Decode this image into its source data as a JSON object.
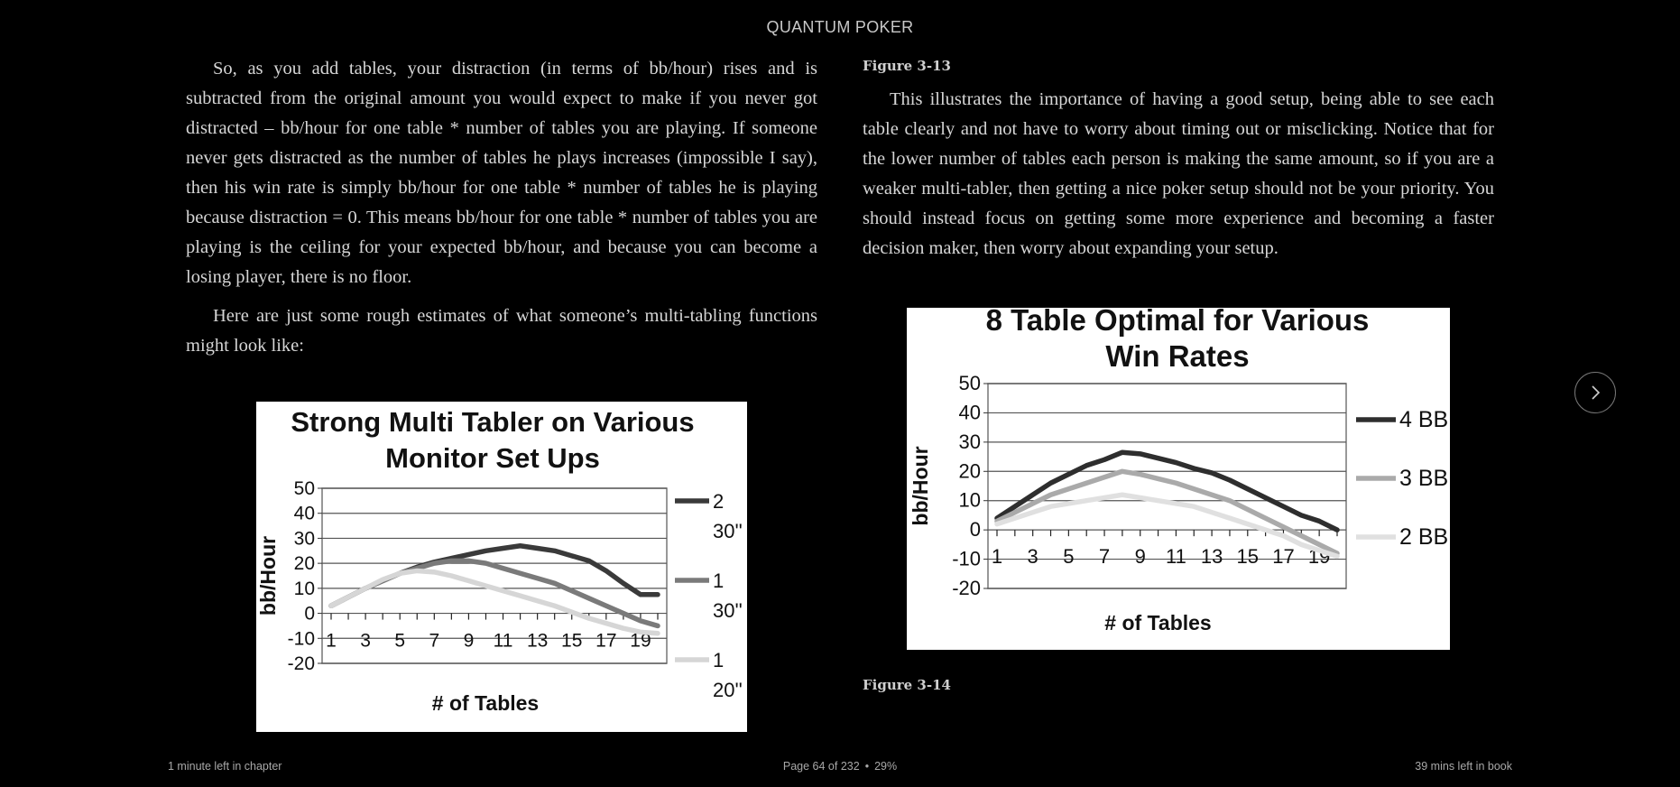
{
  "book": {
    "title": "QUANTUM POKER"
  },
  "left": {
    "p1": "So, as you add tables, your distraction (in terms of bb/hour) rises and is subtracted from the original amount you would expect to make if you never got distracted – bb/hour for one table * number of tables you are playing. If someone never gets distracted as the number of tables he plays increases (impossible I say), then his win rate is simply bb/hour for one table * number of tables he is playing because distraction = 0. This means bb/hour for one table * number of tables you are playing is the ceiling for your expected bb/hour, and because you can become a losing player, there is no floor.",
    "p2": "Here are just some rough estimates of what someone’s multi-tabling functions might look like:"
  },
  "right": {
    "fig13": "Figure 3-13",
    "p1": "This illustrates the importance of having a good setup, being able to see each table clearly and not have to worry about timing out or misclicking. Notice that for the lower number of tables each person is making the same amount, so if you are a weaker multi-tabler, then getting a nice poker setup should not be your priority. You should instead focus on getting some more experience and becoming a faster decision maker, then worry about expanding your setup.",
    "fig14": "Figure 3-14"
  },
  "footer": {
    "left": "1 minute left in chapter",
    "page": "Page 64 of 232",
    "percent": "29%",
    "right": "39 mins left in book"
  },
  "icons": {
    "next": "chevron-right-icon"
  },
  "chart_data": [
    {
      "type": "line",
      "title": "Strong Multi Tabler on Various Monitor Set Ups",
      "xlabel": "# of Tables",
      "ylabel": "bb/Hour",
      "ylim": [
        -20,
        50
      ],
      "yticks": [
        50,
        40,
        30,
        20,
        10,
        0,
        -10,
        -20
      ],
      "xticks": [
        1,
        3,
        5,
        7,
        9,
        11,
        13,
        15,
        17,
        19
      ],
      "grid": true,
      "legend": "right",
      "x": [
        1,
        2,
        3,
        4,
        5,
        6,
        7,
        8,
        9,
        10,
        11,
        12,
        13,
        14,
        15,
        16,
        17,
        18,
        19,
        20
      ],
      "series": [
        {
          "name": "2 30''",
          "color": "#3a3a3a",
          "values": [
            3,
            6.5,
            10,
            13,
            16,
            18.5,
            20.5,
            22,
            23.5,
            25,
            26,
            27,
            26,
            25,
            23,
            21,
            17,
            12,
            7.5,
            7.5
          ]
        },
        {
          "name": "1 30''",
          "color": "#7a7a7a",
          "values": [
            3,
            6.5,
            10,
            13,
            16,
            18,
            20,
            21,
            21,
            20,
            18,
            16,
            14,
            12,
            9,
            6,
            3,
            0,
            -3,
            -5
          ]
        },
        {
          "name": "1 20''",
          "color": "#d6d6d6",
          "values": [
            3,
            6.5,
            10,
            13.5,
            16,
            17,
            16.5,
            15,
            13,
            11,
            9,
            7,
            5,
            3,
            0.5,
            -2,
            -4,
            -6,
            -7.5,
            -8
          ]
        }
      ]
    },
    {
      "type": "line",
      "title": "8 Table Optimal for Various Win Rates",
      "xlabel": "# of Tables",
      "ylabel": "bb/Hour",
      "ylim": [
        -20,
        50
      ],
      "yticks": [
        50,
        40,
        30,
        20,
        10,
        0,
        -10,
        -20
      ],
      "xticks": [
        1,
        3,
        5,
        7,
        9,
        11,
        13,
        15,
        17,
        19
      ],
      "grid": true,
      "legend": "right",
      "x": [
        1,
        2,
        3,
        4,
        5,
        6,
        7,
        8,
        9,
        10,
        11,
        12,
        13,
        14,
        15,
        16,
        17,
        18,
        19,
        20
      ],
      "series": [
        {
          "name": "4 BB",
          "color": "#2e2e2e",
          "values": [
            4,
            8,
            12,
            16,
            19,
            22,
            24,
            26.5,
            26,
            24.5,
            23,
            21,
            19.5,
            17,
            14,
            11,
            8,
            5,
            3,
            0
          ]
        },
        {
          "name": "3 BB",
          "color": "#aaaaaa",
          "values": [
            3,
            6,
            9,
            12,
            14,
            16,
            18,
            20,
            19,
            17.5,
            16,
            14,
            12,
            10,
            7,
            4,
            1,
            -2,
            -5,
            -8
          ]
        },
        {
          "name": "2 BB",
          "color": "#e0e0e0",
          "values": [
            2,
            4,
            6,
            8,
            9,
            10,
            11,
            12,
            11,
            10,
            9,
            8,
            6,
            4,
            2,
            0,
            -2,
            -5,
            -7,
            -9
          ]
        }
      ]
    }
  ]
}
